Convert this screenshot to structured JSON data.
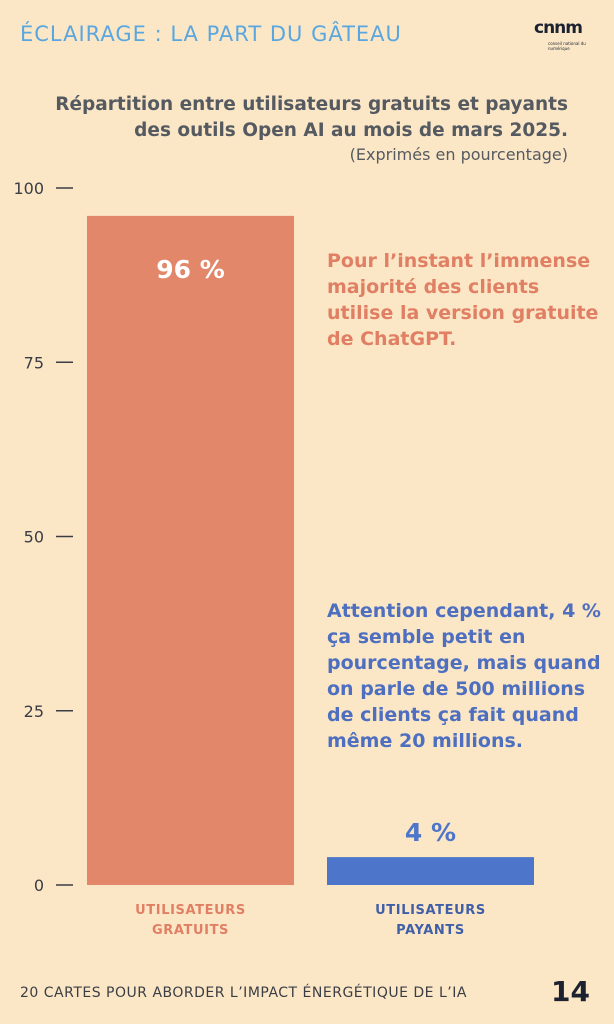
{
  "header": {
    "title": "ÉCLAIRAGE : LA PART DU GÂTEAU",
    "logo_text": "cnnm",
    "logo_sub": "conseil national du numérique"
  },
  "chart_data": {
    "type": "bar",
    "title": "Répartition entre utilisateurs gratuits et payants des outils Open AI au mois de mars 2025.",
    "subtitle": "(Exprimés en pourcentage)",
    "categories": [
      "UTILISATEURS GRATUITS",
      "UTILISATEURS PAYANTS"
    ],
    "values": [
      96,
      4
    ],
    "value_labels": [
      "96 %",
      "4 %"
    ],
    "colors": [
      "#e2876a",
      "#4d75c9"
    ],
    "label_colors": [
      "#e07f63",
      "#3f5fa8"
    ],
    "yticks": [
      0,
      25,
      50,
      75,
      100
    ],
    "ylim": [
      0,
      100
    ],
    "grid": false,
    "legend": "none"
  },
  "annotations": {
    "free": "Pour l’instant l’immense majorité des clients utilise la version gratuite de ChatGPT.",
    "paid": "Attention cependant, 4 % ça semble petit en pourcentage, mais quand on parle de 500 millions de clients ça fait quand même 20 millions."
  },
  "footer": {
    "text": "20 CARTES POUR ABORDER L’IMPACT ÉNERGÉTIQUE DE L’IA",
    "page_number": "14"
  }
}
